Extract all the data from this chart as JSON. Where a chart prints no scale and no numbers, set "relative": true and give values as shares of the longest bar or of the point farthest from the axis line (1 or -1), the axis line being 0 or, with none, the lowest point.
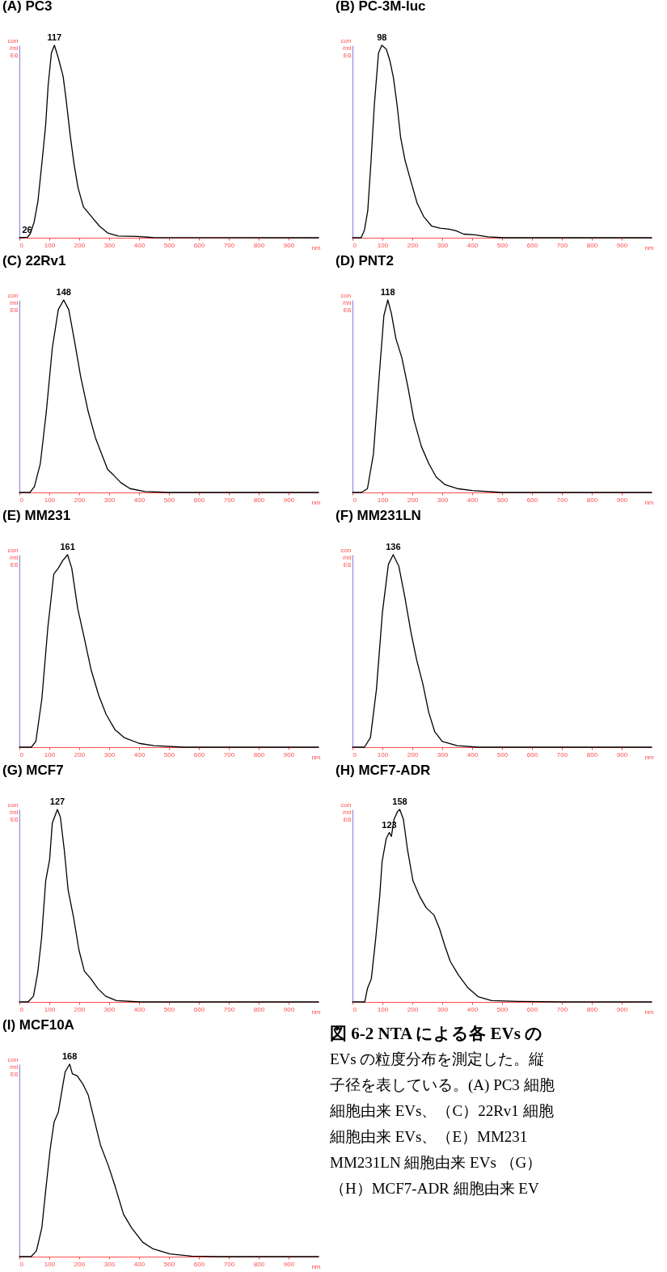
{
  "chart_data": [
    {
      "type": "line",
      "title": "(A) PC3",
      "xlabel": "nm",
      "ylabel": "con /ml E6",
      "relative": true,
      "color": "#000000",
      "xlim": [
        0,
        1000
      ],
      "xticks": [
        0,
        100,
        200,
        300,
        400,
        500,
        600,
        700,
        800,
        900
      ],
      "x": [
        0,
        27,
        36,
        49,
        62,
        76,
        88,
        96,
        107,
        117,
        129,
        146,
        156,
        170,
        183,
        196,
        214,
        246,
        268,
        295,
        330,
        393,
        446,
        1000
      ],
      "values": [
        0,
        0.003,
        0.02,
        0.08,
        0.19,
        0.4,
        0.59,
        0.79,
        0.96,
        1,
        0.94,
        0.84,
        0.72,
        0.53,
        0.38,
        0.26,
        0.16,
        0.1,
        0.06,
        0.025,
        0.009,
        0.007,
        0.001,
        0
      ],
      "annotations": [
        {
          "text": "117",
          "x": 117,
          "y": 1
        },
        {
          "text": "26",
          "x": 26,
          "y": 0
        }
      ]
    },
    {
      "type": "line",
      "title": "(B) PC-3M-luc",
      "xlabel": "nm",
      "ylabel": "con /ml E6",
      "relative": true,
      "color": "#000000",
      "xlim": [
        0,
        1000
      ],
      "xticks": [
        0,
        100,
        200,
        300,
        400,
        500,
        600,
        700,
        800,
        900
      ],
      "x": [
        0,
        29,
        40,
        51,
        62,
        73,
        87,
        98,
        113,
        125,
        137,
        149,
        161,
        176,
        194,
        216,
        238,
        265,
        292,
        323,
        346,
        372,
        408,
        453,
        506,
        1000
      ],
      "values": [
        0,
        0,
        0.04,
        0.14,
        0.4,
        0.69,
        0.96,
        1,
        0.98,
        0.92,
        0.83,
        0.69,
        0.52,
        0.4,
        0.3,
        0.18,
        0.11,
        0.06,
        0.05,
        0.045,
        0.036,
        0.019,
        0.015,
        0.005,
        0,
        0
      ],
      "annotations": [
        {
          "text": "98",
          "x": 98,
          "y": 1
        }
      ]
    },
    {
      "type": "line",
      "title": "(C) 22Rv1",
      "xlabel": "nm",
      "ylabel": "con /ml E6",
      "relative": true,
      "color": "#000000",
      "xlim": [
        0,
        1000
      ],
      "xticks": [
        0,
        100,
        200,
        300,
        400,
        500,
        600,
        700,
        800,
        900
      ],
      "x": [
        0,
        35,
        50,
        70,
        90,
        110,
        130,
        148,
        165,
        185,
        205,
        230,
        255,
        275,
        295,
        315,
        340,
        370,
        420,
        500,
        1000
      ],
      "values": [
        0,
        0,
        0.03,
        0.15,
        0.42,
        0.75,
        0.95,
        1,
        0.95,
        0.78,
        0.6,
        0.42,
        0.28,
        0.2,
        0.12,
        0.09,
        0.05,
        0.02,
        0.005,
        0,
        0
      ],
      "annotations": [
        {
          "text": "148",
          "x": 148,
          "y": 1
        }
      ]
    },
    {
      "type": "line",
      "title": "(D) PNT2",
      "xlabel": "nm",
      "ylabel": "con /ml E6",
      "relative": true,
      "color": "#000000",
      "xlim": [
        0,
        1000
      ],
      "xticks": [
        0,
        100,
        200,
        300,
        400,
        500,
        600,
        700,
        800,
        900
      ],
      "x": [
        0,
        30,
        50,
        70,
        90,
        105,
        118,
        130,
        145,
        165,
        185,
        205,
        230,
        255,
        280,
        310,
        350,
        400,
        500,
        1000
      ],
      "values": [
        0,
        0,
        0.02,
        0.2,
        0.62,
        0.92,
        1,
        0.93,
        0.8,
        0.7,
        0.55,
        0.38,
        0.24,
        0.15,
        0.08,
        0.04,
        0.02,
        0.01,
        0,
        0
      ],
      "annotations": [
        {
          "text": "118",
          "x": 118,
          "y": 1
        }
      ]
    },
    {
      "type": "line",
      "title": "(E) MM231",
      "xlabel": "nm",
      "ylabel": "con /ml E6",
      "relative": true,
      "color": "#000000",
      "xlim": [
        0,
        1000
      ],
      "xticks": [
        0,
        100,
        200,
        300,
        400,
        500,
        600,
        700,
        800,
        900
      ],
      "x": [
        0,
        40,
        55,
        75,
        95,
        115,
        130,
        145,
        161,
        175,
        195,
        215,
        240,
        265,
        290,
        320,
        350,
        400,
        450,
        550,
        1000
      ],
      "values": [
        0,
        0,
        0.03,
        0.25,
        0.62,
        0.9,
        0.93,
        0.97,
        1,
        0.93,
        0.72,
        0.58,
        0.4,
        0.27,
        0.17,
        0.09,
        0.05,
        0.02,
        0.008,
        0,
        0
      ],
      "annotations": [
        {
          "text": "161",
          "x": 161,
          "y": 1
        }
      ]
    },
    {
      "type": "line",
      "title": "(F) MM231LN",
      "xlabel": "nm",
      "ylabel": "con /ml E6",
      "relative": true,
      "color": "#000000",
      "xlim": [
        0,
        1000
      ],
      "xticks": [
        0,
        100,
        200,
        300,
        400,
        500,
        600,
        700,
        800,
        900
      ],
      "x": [
        0,
        40,
        60,
        80,
        100,
        120,
        136,
        155,
        175,
        195,
        215,
        235,
        255,
        275,
        300,
        350,
        420,
        1000
      ],
      "values": [
        0,
        0,
        0.05,
        0.3,
        0.7,
        0.95,
        1,
        0.94,
        0.78,
        0.6,
        0.45,
        0.33,
        0.18,
        0.08,
        0.03,
        0.008,
        0,
        0
      ],
      "annotations": [
        {
          "text": "136",
          "x": 136,
          "y": 1
        }
      ]
    },
    {
      "type": "line",
      "title": "(G) MCF7",
      "xlabel": "nm",
      "ylabel": "con /ml E6",
      "relative": true,
      "color": "#000000",
      "xlim": [
        0,
        1000
      ],
      "xticks": [
        0,
        100,
        200,
        300,
        400,
        500,
        600,
        700,
        800,
        900
      ],
      "x": [
        0,
        29,
        47,
        61,
        74,
        88,
        101,
        110,
        127,
        137,
        150,
        163,
        181,
        199,
        217,
        239,
        262,
        288,
        324,
        404,
        1000
      ],
      "values": [
        0,
        0,
        0.03,
        0.15,
        0.33,
        0.63,
        0.74,
        0.93,
        1,
        0.96,
        0.79,
        0.58,
        0.44,
        0.27,
        0.16,
        0.12,
        0.07,
        0.03,
        0.007,
        0,
        0
      ],
      "annotations": [
        {
          "text": "127",
          "x": 127,
          "y": 1
        }
      ]
    },
    {
      "type": "line",
      "title": "(H) MCF7-ADR",
      "xlabel": "nm",
      "ylabel": "con /ml E6",
      "relative": true,
      "color": "#000000",
      "xlim": [
        0,
        1000
      ],
      "xticks": [
        0,
        100,
        200,
        300,
        400,
        500,
        600,
        700,
        800,
        900
      ],
      "x": [
        0,
        41,
        50,
        63,
        77,
        91,
        99,
        113,
        123,
        130,
        139,
        151,
        158,
        170,
        184,
        202,
        224,
        246,
        273,
        291,
        309,
        327,
        354,
        385,
        420,
        465,
        554,
        706,
        1000
      ],
      "values": [
        0,
        0,
        0.07,
        0.12,
        0.32,
        0.55,
        0.73,
        0.85,
        0.88,
        0.86,
        0.95,
        0.99,
        1,
        0.95,
        0.79,
        0.63,
        0.55,
        0.49,
        0.45,
        0.38,
        0.29,
        0.21,
        0.14,
        0.075,
        0.027,
        0.007,
        0.003,
        0,
        0
      ],
      "annotations": [
        {
          "text": "123",
          "x": 123,
          "y": 0.88
        },
        {
          "text": "158",
          "x": 158,
          "y": 1
        }
      ]
    },
    {
      "type": "line",
      "title": "(I) MCF10A",
      "xlabel": "nm",
      "ylabel": "con /ml E6",
      "relative": true,
      "color": "#000000",
      "xlim": [
        0,
        1000
      ],
      "xticks": [
        0,
        100,
        200,
        300,
        400,
        500,
        600,
        700,
        800,
        900
      ],
      "x": [
        0,
        39,
        57,
        75,
        89,
        103,
        116,
        130,
        144,
        153,
        168,
        177,
        193,
        211,
        230,
        252,
        271,
        298,
        321,
        348,
        375,
        412,
        447,
        503,
        575,
        666,
        1000
      ],
      "values": [
        0,
        0,
        0.03,
        0.15,
        0.36,
        0.56,
        0.7,
        0.75,
        0.88,
        0.96,
        1,
        0.95,
        0.94,
        0.9,
        0.84,
        0.7,
        0.58,
        0.47,
        0.36,
        0.22,
        0.15,
        0.075,
        0.04,
        0.014,
        0.003,
        0,
        0
      ],
      "annotations": [
        {
          "text": "168",
          "x": 168,
          "y": 1
        }
      ]
    },
    {
      "type": "other",
      "title": "図 6-2 NTA による各 EVs の",
      "annotations": [
        "EVs の粒度分布を測定した。縦",
        "子径を表している。(A) PC3 細胞",
        "細胞由来 EVs、（C）22Rv1 細胞",
        "細胞由来 EVs、（E）MM231",
        "MM231LN 細胞由来 EVs （G）",
        "（H）MCF7-ADR 細胞由来 EV"
      ]
    }
  ]
}
